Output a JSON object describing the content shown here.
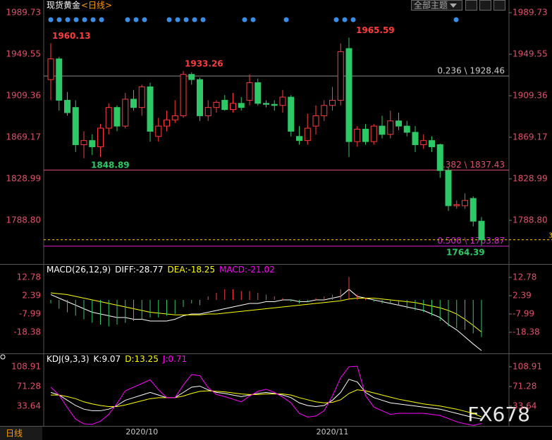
{
  "header": {
    "title": "现货黄金",
    "period": "<日线>",
    "theme_menu": "全部主题"
  },
  "footer": {
    "period": "日线",
    "watermark": "FX678"
  },
  "chart_data": [
    {
      "type": "candlestick",
      "categories": [
        null,
        null,
        null,
        null,
        null,
        null,
        null,
        null,
        null,
        null,
        null,
        "2020/10",
        null,
        null,
        null,
        null,
        null,
        null,
        null,
        null,
        null,
        null,
        null,
        null,
        null,
        null,
        null,
        null,
        null,
        null,
        null,
        null,
        null,
        null,
        "2020/11",
        null,
        null,
        null,
        null,
        null,
        null,
        null,
        null,
        null,
        null,
        null,
        null,
        null,
        null,
        null,
        null,
        null,
        null
      ],
      "open": [
        1925,
        1945,
        1905,
        1898,
        1862,
        1866,
        1860,
        1878,
        1898,
        1880,
        1906,
        1898,
        1918,
        1870,
        1880,
        1886,
        1890,
        1930,
        1925,
        1890,
        1898,
        1905,
        1896,
        1902,
        1905,
        1922,
        1902,
        1901,
        1900,
        1908,
        1870,
        1866,
        1880,
        1890,
        1900,
        1905,
        1955,
        1865,
        1877,
        1865,
        1880,
        1872,
        1885,
        1880,
        1874,
        1862,
        1866,
        1862,
        1837,
        1803,
        1803,
        1810,
        1788
      ],
      "high": [
        1960.13,
        1947,
        1913,
        1905,
        1875,
        1872,
        1882,
        1902,
        1900,
        1912,
        1915,
        1920,
        1922,
        1888,
        1895,
        1905,
        1933.26,
        1932,
        1927,
        1905,
        1905,
        1910,
        1912,
        1908,
        1930,
        1926,
        1905,
        1905,
        1915,
        1910,
        1880,
        1892,
        1900,
        1905,
        1918,
        1960,
        1965.59,
        1880,
        1882,
        1882,
        1890,
        1895,
        1893,
        1885,
        1880,
        1872,
        1870,
        1863,
        1840,
        1808,
        1815,
        1812,
        1792
      ],
      "low": [
        1905,
        1895,
        1890,
        1855,
        1848.89,
        1852,
        1850,
        1872,
        1875,
        1878,
        1895,
        1890,
        1865,
        1865,
        1875,
        1883,
        1888,
        1920,
        1885,
        1885,
        1893,
        1895,
        1893,
        1895,
        1900,
        1900,
        1898,
        1895,
        1893,
        1870,
        1862,
        1862,
        1872,
        1885,
        1895,
        1900,
        1850,
        1860,
        1862,
        1862,
        1868,
        1868,
        1876,
        1870,
        1855,
        1858,
        1855,
        1830,
        1798,
        1800,
        1800,
        1783,
        1764.39
      ],
      "close": [
        1945,
        1905,
        1893,
        1862,
        1866,
        1860,
        1878,
        1898,
        1880,
        1906,
        1898,
        1918,
        1875,
        1880,
        1886,
        1890,
        1930,
        1925,
        1890,
        1898,
        1903,
        1896,
        1902,
        1898,
        1922,
        1902,
        1901,
        1900,
        1908,
        1875,
        1866,
        1878,
        1890,
        1900,
        1905,
        1952,
        1865,
        1877,
        1865,
        1880,
        1872,
        1885,
        1880,
        1874,
        1862,
        1866,
        1860,
        1837,
        1803,
        1804,
        1808,
        1788,
        1770
      ],
      "up_color": "#ff3c3c",
      "down_color": "#2ec866",
      "ylim": [
        1746.58,
        2001.99
      ],
      "yticks": [
        {
          "value": 1788.8,
          "label": "1788.80"
        },
        1828.99,
        1869.17,
        1909.36,
        1949.55,
        1989.73
      ],
      "levels": [
        {
          "label": "0.236 \\ 1928.46",
          "value": 1928.46,
          "color": "#8a8a8a"
        },
        {
          "label": "0.382 \\ 1837.43",
          "value": 1837.43,
          "color": "#e0506a"
        },
        {
          "label": "0.500 \\ 1763.87",
          "value": 1763.87,
          "color": "#d020d0"
        }
      ],
      "last_price": {
        "value": 1770,
        "label": "3",
        "color": "#ffd000"
      }
    },
    {
      "type": "macd",
      "title": "MACD(26,12,9)",
      "ylim": [
        -29.57,
        19.97
      ],
      "yticks": [
        -18.38,
        -7.99,
        2.39,
        12.78
      ],
      "series": [
        {
          "name": "DIFF:-28.77",
          "color": "#ffffff",
          "values": [
            3,
            1,
            -1,
            -3,
            -5,
            -7,
            -8,
            -9,
            -10,
            -10,
            -11,
            -11,
            -12,
            -12,
            -12,
            -11,
            -9,
            -8,
            -8,
            -7,
            -6,
            -5,
            -4,
            -3,
            -2,
            -2,
            -1,
            -1,
            0,
            0,
            -1,
            -1,
            0,
            0,
            1,
            2,
            6,
            2,
            1,
            0,
            -1,
            -2,
            -3,
            -4,
            -5,
            -6,
            -8,
            -10,
            -14,
            -17,
            -21,
            -25,
            -28.77
          ]
        },
        {
          "name": "DEA:-18.25",
          "color": "#ffff00",
          "values": [
            4,
            3.5,
            3,
            2,
            1,
            0,
            -1,
            -2,
            -3,
            -4,
            -5,
            -6,
            -7,
            -7.5,
            -8,
            -8.5,
            -8.5,
            -8.5,
            -8.5,
            -8,
            -8,
            -7.5,
            -7,
            -6.5,
            -6,
            -5.5,
            -5,
            -4.5,
            -4,
            -3.5,
            -3,
            -2.5,
            -2,
            -1.5,
            -1,
            -0.5,
            0.5,
            1,
            1,
            1,
            0.5,
            0,
            -0.5,
            -1,
            -1.5,
            -2.5,
            -3.5,
            -4.5,
            -6,
            -8,
            -11,
            -14.5,
            -18.25
          ]
        },
        {
          "name": "MACD:-21.02",
          "color": "#ff00ff",
          "style": "histogram",
          "values": [
            -2,
            -5,
            -7,
            -9,
            -11,
            -13,
            -14,
            -15,
            -14,
            -13,
            -12,
            -11,
            -10,
            -10,
            -9,
            -8,
            -4,
            -2,
            -3,
            2,
            4,
            6,
            6,
            5,
            5,
            4,
            3,
            2,
            1,
            -1,
            -2,
            -1,
            1,
            2,
            3,
            6,
            13,
            3,
            1,
            -1,
            -2,
            -2,
            -3,
            -5,
            -6,
            -7,
            -9,
            -12,
            -15,
            -16,
            -17,
            -19,
            -21.02
          ]
        }
      ]
    },
    {
      "type": "kdj",
      "title": "KDJ(9,3,3)",
      "ylim": [
        -3.99,
        133.1
      ],
      "yticks": [
        33.64,
        71.28,
        108.91
      ],
      "series": [
        {
          "name": "K:9.07",
          "color": "#ffffff",
          "values": [
            60,
            55,
            45,
            35,
            28,
            25,
            25,
            28,
            35,
            45,
            50,
            55,
            60,
            55,
            50,
            50,
            60,
            70,
            72,
            65,
            60,
            58,
            55,
            52,
            55,
            58,
            60,
            58,
            55,
            50,
            40,
            35,
            33,
            35,
            45,
            60,
            85,
            80,
            60,
            50,
            45,
            40,
            38,
            36,
            34,
            32,
            30,
            28,
            24,
            20,
            16,
            12,
            9.07
          ]
        },
        {
          "name": "D:13.25",
          "color": "#ffff00",
          "values": [
            55,
            55,
            52,
            48,
            42,
            38,
            35,
            33,
            33,
            36,
            40,
            44,
            48,
            50,
            50,
            50,
            53,
            58,
            62,
            63,
            62,
            61,
            59,
            57,
            56,
            56,
            57,
            57,
            57,
            55,
            50,
            46,
            42,
            40,
            41,
            46,
            58,
            65,
            63,
            59,
            55,
            51,
            47,
            44,
            41,
            38,
            36,
            34,
            31,
            28,
            24,
            20,
            13.25
          ]
        },
        {
          "name": "J:0.71",
          "color": "#ff00ff",
          "values": [
            70,
            55,
            31,
            9,
            0,
            -1,
            5,
            18,
            39,
            63,
            70,
            77,
            84,
            65,
            50,
            50,
            74,
            94,
            92,
            69,
            56,
            52,
            47,
            42,
            53,
            62,
            66,
            60,
            51,
            40,
            20,
            13,
            15,
            25,
            53,
            88,
            109,
            110,
            54,
            32,
            25,
            18,
            20,
            20,
            20,
            20,
            18,
            16,
            10,
            4,
            0,
            -3,
            0.71
          ]
        }
      ]
    }
  ]
}
